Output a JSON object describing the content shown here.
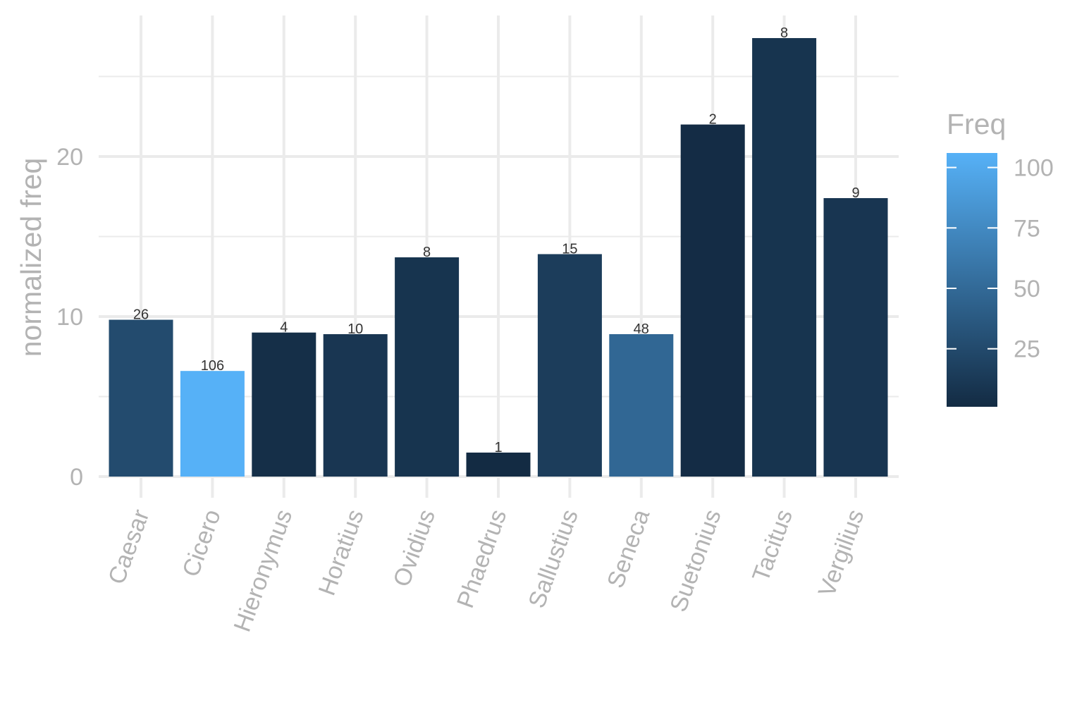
{
  "chart_data": {
    "type": "bar",
    "xlabel": "",
    "ylabel": "normalized freq",
    "categories": [
      "Caesar",
      "Cicero",
      "Hieronymus",
      "Horatius",
      "Ovidius",
      "Phaedrus",
      "Sallustius",
      "Seneca",
      "Suetonius",
      "Tacitus",
      "Vergilius"
    ],
    "values": [
      9.8,
      6.6,
      9.0,
      8.9,
      13.7,
      1.5,
      13.9,
      8.9,
      22.0,
      27.4,
      17.4
    ],
    "freq": [
      26,
      106,
      4,
      10,
      8,
      1,
      15,
      48,
      2,
      8,
      9
    ],
    "bar_labels": [
      "26",
      "106",
      "4",
      "10",
      "8",
      "1",
      "15",
      "48",
      "2",
      "8",
      "9"
    ],
    "ylim": [
      0,
      28.5
    ],
    "yticks": [
      0,
      10,
      20
    ],
    "yticks_labels": [
      "0",
      "10",
      "20"
    ],
    "grid": true,
    "legend": {
      "title": "Freq",
      "position": "right",
      "type": "colorbar",
      "range": [
        1,
        106
      ],
      "ticks": [
        25,
        50,
        75,
        100
      ],
      "tick_labels": [
        "25",
        "50",
        "75",
        "100"
      ],
      "color_low": "#132B43",
      "color_high": "#56B1F7"
    }
  }
}
